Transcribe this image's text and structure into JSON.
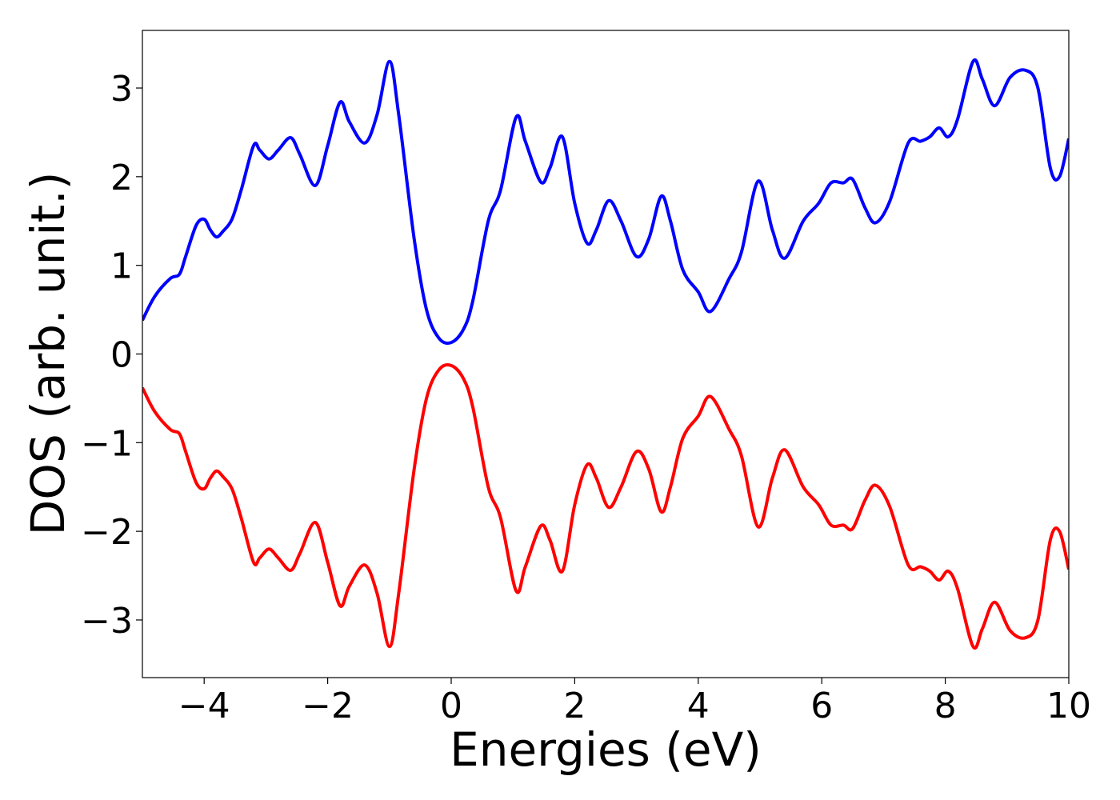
{
  "chart_data": {
    "type": "line",
    "title": "",
    "xlabel": "Energies (eV)",
    "ylabel": "DOS (arb. unit.)",
    "xlim": [
      -5,
      10
    ],
    "ylim": [
      -3.65,
      3.65
    ],
    "xticks": [
      -4,
      -2,
      0,
      2,
      4,
      6,
      8,
      10
    ],
    "yticks": [
      -3,
      -2,
      -1,
      0,
      1,
      2,
      3
    ],
    "xtick_labels": [
      "−4",
      "−2",
      "0",
      "2",
      "4",
      "6",
      "8",
      "10"
    ],
    "ytick_labels": [
      "−3",
      "−2",
      "−1",
      "0",
      "1",
      "2",
      "3"
    ],
    "grid": false,
    "legend": false,
    "series": [
      {
        "color": "#0000ff",
        "x": [
          -5.0,
          -4.8,
          -4.55,
          -4.4,
          -4.3,
          -4.13,
          -4.0,
          -3.9,
          -3.8,
          -3.7,
          -3.55,
          -3.4,
          -3.2,
          -3.1,
          -2.95,
          -2.8,
          -2.6,
          -2.45,
          -2.2,
          -2.0,
          -1.8,
          -1.65,
          -1.4,
          -1.2,
          -1.0,
          -0.85,
          -0.6,
          -0.4,
          -0.2,
          0.0,
          0.2,
          0.35,
          0.6,
          0.8,
          1.05,
          1.2,
          1.45,
          1.6,
          1.8,
          2.0,
          2.2,
          2.35,
          2.55,
          2.75,
          3.0,
          3.2,
          3.4,
          3.55,
          3.75,
          4.0,
          4.2,
          4.5,
          4.7,
          4.97,
          5.2,
          5.4,
          5.7,
          5.95,
          6.15,
          6.35,
          6.5,
          6.7,
          6.87,
          7.1,
          7.4,
          7.6,
          7.75,
          7.9,
          8.05,
          8.2,
          8.45,
          8.6,
          8.8,
          9.05,
          9.3,
          9.5,
          9.7,
          9.85,
          10.0
        ],
        "y": [
          0.38,
          0.65,
          0.85,
          0.9,
          1.1,
          1.45,
          1.52,
          1.4,
          1.32,
          1.38,
          1.52,
          1.85,
          2.35,
          2.3,
          2.2,
          2.3,
          2.44,
          2.25,
          1.9,
          2.35,
          2.84,
          2.62,
          2.38,
          2.7,
          3.3,
          2.7,
          1.3,
          0.5,
          0.18,
          0.13,
          0.28,
          0.6,
          1.5,
          1.85,
          2.67,
          2.4,
          1.94,
          2.1,
          2.45,
          1.7,
          1.25,
          1.4,
          1.73,
          1.5,
          1.1,
          1.3,
          1.78,
          1.5,
          0.95,
          0.7,
          0.48,
          0.85,
          1.15,
          1.95,
          1.4,
          1.08,
          1.5,
          1.7,
          1.93,
          1.93,
          1.97,
          1.65,
          1.48,
          1.72,
          2.38,
          2.4,
          2.45,
          2.55,
          2.45,
          2.65,
          3.3,
          3.1,
          2.8,
          3.12,
          3.2,
          3.0,
          2.1,
          2.0,
          2.43
        ]
      },
      {
        "color": "#ff0000",
        "x": [
          -5.0,
          -4.8,
          -4.55,
          -4.4,
          -4.3,
          -4.13,
          -4.0,
          -3.9,
          -3.8,
          -3.7,
          -3.55,
          -3.4,
          -3.2,
          -3.1,
          -2.95,
          -2.8,
          -2.6,
          -2.45,
          -2.2,
          -2.0,
          -1.8,
          -1.65,
          -1.4,
          -1.2,
          -1.0,
          -0.85,
          -0.6,
          -0.4,
          -0.2,
          0.0,
          0.2,
          0.35,
          0.6,
          0.8,
          1.05,
          1.2,
          1.45,
          1.6,
          1.8,
          2.0,
          2.2,
          2.35,
          2.55,
          2.75,
          3.0,
          3.2,
          3.4,
          3.55,
          3.75,
          4.0,
          4.2,
          4.5,
          4.7,
          4.97,
          5.2,
          5.4,
          5.7,
          5.95,
          6.15,
          6.35,
          6.5,
          6.7,
          6.87,
          7.1,
          7.4,
          7.6,
          7.75,
          7.9,
          8.05,
          8.2,
          8.45,
          8.6,
          8.8,
          9.05,
          9.3,
          9.5,
          9.7,
          9.85,
          10.0
        ],
        "y": [
          -0.38,
          -0.65,
          -0.85,
          -0.9,
          -1.1,
          -1.45,
          -1.52,
          -1.4,
          -1.32,
          -1.38,
          -1.52,
          -1.85,
          -2.35,
          -2.3,
          -2.2,
          -2.3,
          -2.44,
          -2.25,
          -1.9,
          -2.35,
          -2.84,
          -2.62,
          -2.38,
          -2.7,
          -3.3,
          -2.7,
          -1.3,
          -0.5,
          -0.18,
          -0.13,
          -0.28,
          -0.6,
          -1.5,
          -1.85,
          -2.67,
          -2.4,
          -1.94,
          -2.1,
          -2.45,
          -1.7,
          -1.25,
          -1.4,
          -1.73,
          -1.5,
          -1.1,
          -1.3,
          -1.78,
          -1.5,
          -0.95,
          -0.7,
          -0.48,
          -0.85,
          -1.15,
          -1.95,
          -1.4,
          -1.08,
          -1.5,
          -1.7,
          -1.93,
          -1.93,
          -1.97,
          -1.65,
          -1.48,
          -1.72,
          -2.38,
          -2.4,
          -2.45,
          -2.55,
          -2.45,
          -2.65,
          -3.3,
          -3.1,
          -2.8,
          -3.12,
          -3.2,
          -3.0,
          -2.1,
          -2.0,
          -2.43
        ]
      }
    ]
  }
}
